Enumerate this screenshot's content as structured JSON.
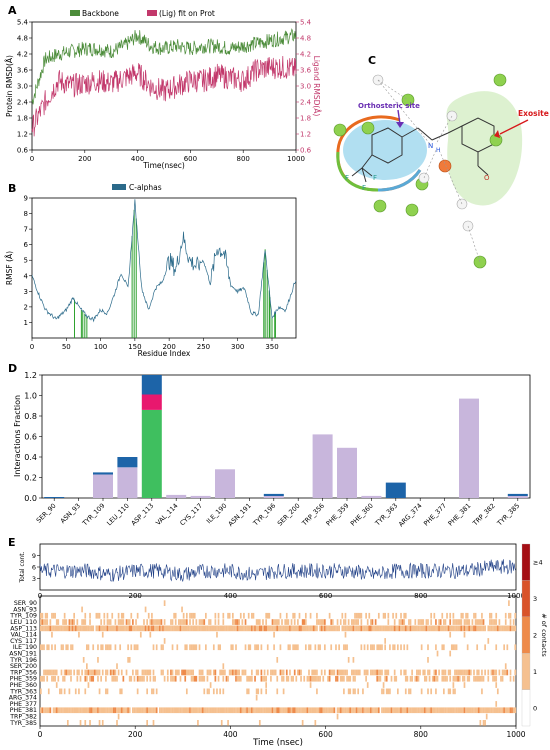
{
  "panel_letters": {
    "a": "A",
    "b": "B",
    "c": "C",
    "d": "D",
    "e": "E"
  },
  "chart_data": [
    {
      "id": "A",
      "type": "line",
      "xlabel": "Time(nsec)",
      "ylabel": "Protein RMSD(Å)",
      "ylabel_right": "Ligand RMSD(Å)",
      "xlim": [
        0,
        1000
      ],
      "ylim": [
        0.6,
        5.4
      ],
      "xticks": [
        "0",
        "200",
        "400",
        "600",
        "800",
        "1000"
      ],
      "yticks": [
        "0.6",
        "1.2",
        "1.8",
        "2.4",
        "3.0",
        "3.6",
        "4.2",
        "4.8",
        "5.4"
      ],
      "legend_position": "top",
      "series": [
        {
          "name": "Backbone",
          "color": "#4c8c3a",
          "x": [
            0,
            50,
            100,
            150,
            200,
            250,
            300,
            350,
            400,
            450,
            500,
            550,
            600,
            650,
            700,
            750,
            800,
            850,
            900,
            950,
            1000
          ],
          "values": [
            2.4,
            4.0,
            4.2,
            4.3,
            4.4,
            4.4,
            4.3,
            4.5,
            4.9,
            4.5,
            4.4,
            4.5,
            4.4,
            4.5,
            4.5,
            4.4,
            4.5,
            4.6,
            4.7,
            4.8,
            4.9
          ]
        },
        {
          "name": "(Lig) fit on Prot",
          "color": "#c2386b",
          "x": [
            0,
            50,
            100,
            150,
            200,
            250,
            300,
            350,
            400,
            450,
            500,
            550,
            600,
            650,
            700,
            750,
            800,
            850,
            900,
            950,
            1000
          ],
          "values": [
            1.4,
            2.4,
            3.2,
            3.0,
            3.1,
            3.2,
            3.1,
            3.3,
            3.5,
            3.0,
            2.8,
            3.0,
            3.2,
            3.2,
            3.4,
            3.3,
            3.2,
            3.6,
            3.7,
            3.7,
            3.6
          ]
        }
      ]
    },
    {
      "id": "B",
      "type": "line",
      "xlabel": "Residue Index",
      "ylabel": "RMSF (Å)",
      "xlim": [
        0,
        385
      ],
      "ylim": [
        0,
        9
      ],
      "xticks": [
        "0",
        "50",
        "100",
        "150",
        "200",
        "250",
        "300",
        "350"
      ],
      "yticks": [
        "1",
        "2",
        "3",
        "4",
        "5",
        "6",
        "7",
        "8",
        "9"
      ],
      "legend_position": "top",
      "series": [
        {
          "name": "C-alphas",
          "color": "#2b6a8a",
          "x": [
            0,
            10,
            20,
            35,
            50,
            60,
            70,
            80,
            90,
            100,
            110,
            120,
            130,
            140,
            150,
            160,
            170,
            180,
            190,
            200,
            210,
            220,
            230,
            240,
            250,
            260,
            270,
            280,
            290,
            300,
            310,
            320,
            330,
            340,
            350,
            360,
            370,
            385
          ],
          "values": [
            4.0,
            2.8,
            1.8,
            1.2,
            1.8,
            2.6,
            1.9,
            1.4,
            1.2,
            1.8,
            1.6,
            2.8,
            4.2,
            3.2,
            8.8,
            3.2,
            1.8,
            3.2,
            3.6,
            5.0,
            4.4,
            6.5,
            5.0,
            4.6,
            5.0,
            3.5,
            5.8,
            5.5,
            3.4,
            3.0,
            3.2,
            1.6,
            1.5,
            5.7,
            1.3,
            2.0,
            1.8,
            3.8
          ]
        }
      ],
      "contact_residues": [
        62,
        72,
        74,
        77,
        80,
        146,
        149,
        152,
        338,
        340,
        343,
        346,
        347,
        350,
        354,
        355
      ]
    },
    {
      "id": "D",
      "type": "bar",
      "ylabel": "Interactions Fraction",
      "ylim": [
        0,
        1.2
      ],
      "yticks": [
        "0.0",
        "0.2",
        "0.4",
        "0.6",
        "0.8",
        "1.0",
        "1.2"
      ],
      "categories": [
        "SER_90",
        "ASN_93",
        "TYR_109",
        "LEU_110",
        "ASP_113",
        "VAL_114",
        "CYS_117",
        "ILE_190",
        "ASN_191",
        "TYR_196",
        "SER_200",
        "TRP_356",
        "PHE_359",
        "PHE_360",
        "TYR_363",
        "ARG_374",
        "PHE_377",
        "PHE_381",
        "TRP_382",
        "TYR_385"
      ],
      "series": [
        {
          "name": "H-bonds",
          "color": "#3fbf5f",
          "values": [
            0,
            0,
            0,
            0,
            0.86,
            0,
            0,
            0,
            0,
            0,
            0,
            0,
            0,
            0,
            0,
            0,
            0,
            0,
            0,
            0
          ]
        },
        {
          "name": "Ionic",
          "color": "#e8186e",
          "values": [
            0,
            0,
            0,
            0,
            0.15,
            0,
            0,
            0,
            0,
            0,
            0,
            0,
            0,
            0,
            0,
            0,
            0,
            0,
            0,
            0
          ]
        },
        {
          "name": "Hydrophobic",
          "color": "#c8b6dc",
          "values": [
            0,
            0,
            0.23,
            0.3,
            0,
            0.03,
            0.02,
            0.28,
            0,
            0.02,
            0,
            0.62,
            0.49,
            0.02,
            0,
            0,
            0,
            0.97,
            0,
            0.02
          ]
        },
        {
          "name": "Water bridges",
          "color": "#1d64a8",
          "values": [
            0.01,
            0,
            0.02,
            0.1,
            0.19,
            0,
            0,
            0,
            0,
            0.02,
            0,
            0,
            0,
            0,
            0.15,
            0,
            0,
            0,
            0,
            0.02
          ]
        }
      ]
    },
    {
      "id": "E",
      "type": "heatmap",
      "xlabel": "Time (nsec)",
      "ylabel": "Total cont.",
      "xlim": [
        0,
        1000
      ],
      "xticks": [
        "0",
        "200",
        "400",
        "600",
        "800",
        "1000"
      ],
      "top_yticks": [
        "3",
        "6",
        "9"
      ],
      "total_contacts": {
        "x": [
          0,
          50,
          100,
          150,
          200,
          250,
          300,
          350,
          400,
          450,
          500,
          550,
          600,
          650,
          700,
          750,
          800,
          850,
          900,
          950,
          1000
        ],
        "values": [
          5,
          5,
          5,
          4,
          5,
          5,
          4,
          5,
          5,
          4,
          5,
          5,
          5,
          5,
          4,
          5,
          5,
          5,
          5,
          6,
          6
        ]
      },
      "rows": [
        "SER_90",
        "ASN_93",
        "TYR_109",
        "LEU_110",
        "ASP_113",
        "VAL_114",
        "CYS_117",
        "ILE_190",
        "ASN_191",
        "TYR_196",
        "SER_200",
        "TRP_356",
        "PHE_359",
        "PHE_360",
        "TYR_363",
        "ARG_374",
        "PHE_377",
        "PHE_381",
        "TRP_382",
        "TYR_385"
      ],
      "row_density": [
        0.01,
        0.01,
        0.3,
        0.55,
        0.99,
        0.04,
        0.02,
        0.32,
        0.01,
        0.04,
        0.01,
        0.65,
        0.55,
        0.02,
        0.2,
        0.01,
        0.01,
        0.98,
        0.01,
        0.03
      ],
      "colorbar_label": "# of contacts",
      "colorbar_ticks": [
        "0",
        "1",
        "2",
        "3",
        "≥4"
      ],
      "colors": [
        "#ffffff",
        "#f5c08f",
        "#ee8a4a",
        "#d9532a",
        "#a50f15"
      ]
    }
  ],
  "diagram_c": {
    "orthosteric_label": "Orthosteric site",
    "exosite_label": "Exosite",
    "atom_f1": "F",
    "atom_f2": "F",
    "atom_f3": "F",
    "atom_o": "O",
    "atom_n": "N",
    "atom_h": "H"
  }
}
